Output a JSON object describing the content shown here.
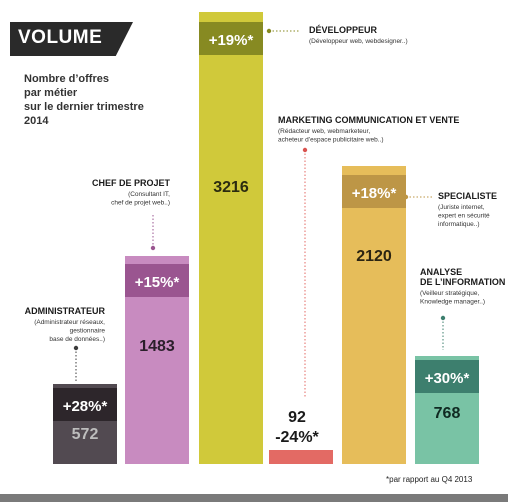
{
  "header": {
    "title": "VOLUME",
    "subtitle_lines": [
      "Nombre d’offres",
      "par métier",
      "sur le dernier trimestre",
      "2014"
    ]
  },
  "footnote": "*par rapport au Q4 2013",
  "chart_data": {
    "type": "bar",
    "title": "VOLUME",
    "subtitle": "Nombre d’offres par métier sur le dernier trimestre 2014",
    "categories": [
      "ADMINISTRATEUR",
      "CHEF DE PROJET",
      "DÉVELOPPEUR",
      "MARKETING COMMUNICATION ET VENTE",
      "SPECIALISTE",
      "ANALYSE DE L’INFORMATION"
    ],
    "values": [
      572,
      1483,
      3216,
      92,
      2120,
      768
    ],
    "growth_labels": [
      "+28%*",
      "+15%*",
      "+19%*",
      "-24%*",
      "+18%*",
      "+30%*"
    ],
    "bars": [
      {
        "name": "ADMINISTRATEUR",
        "title_lines": [
          "ADMINISTRATEUR"
        ],
        "desc_lines": [
          "(Administrateur réseaux,",
          "gestionnaire",
          "base de données..)"
        ],
        "value": 572,
        "growth": "+28%*",
        "color": "#524a51",
        "band_color": "#2d262b",
        "value_color": "#bdbdbd"
      },
      {
        "name": "CHEF DE PROJET",
        "title_lines": [
          "CHEF DE PROJET"
        ],
        "desc_lines": [
          "(Consultant IT,",
          "chef de projet web..)"
        ],
        "value": 1483,
        "growth": "+15%*",
        "color": "#c88bc0",
        "band_color": "#9a5590",
        "value_color": "#2b1f2b"
      },
      {
        "name": "DÉVELOPPEUR",
        "title_lines": [
          "DÉVELOPPEUR"
        ],
        "desc_lines": [
          "(Développeur web, webdesigner..)"
        ],
        "value": 3216,
        "growth": "+19%*",
        "color": "#d0c93a",
        "band_color": "#878a22",
        "value_color": "#2b2b10"
      },
      {
        "name": "MARKETING COMMUNICATION ET VENTE",
        "title_lines": [
          "MARKETING COMMUNICATION ET VENTE"
        ],
        "desc_lines": [
          "(Rédacteur web, webmarketeur,",
          "acheteur d’espace publicitaire web..)"
        ],
        "value": 92,
        "growth": "-24%*",
        "color": "#e36a64",
        "band_color": "#e36a64",
        "value_color": "#1a1a1a"
      },
      {
        "name": "SPECIALISTE",
        "title_lines": [
          "SPECIALISTE"
        ],
        "desc_lines": [
          "(Juriste internet,",
          "expert en sécurité",
          "informatique..)"
        ],
        "value": 2120,
        "growth": "+18%*",
        "color": "#e6bd5a",
        "band_color": "#bd9646",
        "value_color": "#2b2412"
      },
      {
        "name": "ANALYSE DE L’INFORMATION",
        "title_lines": [
          "ANALYSE",
          "DE L’INFORMATION"
        ],
        "desc_lines": [
          "(Veilleur stratégique,",
          "Knowledge manager..)"
        ],
        "value": 768,
        "growth": "+30%*",
        "color": "#79c3a5",
        "band_color": "#3d7f6e",
        "value_color": "#102a22"
      }
    ]
  }
}
